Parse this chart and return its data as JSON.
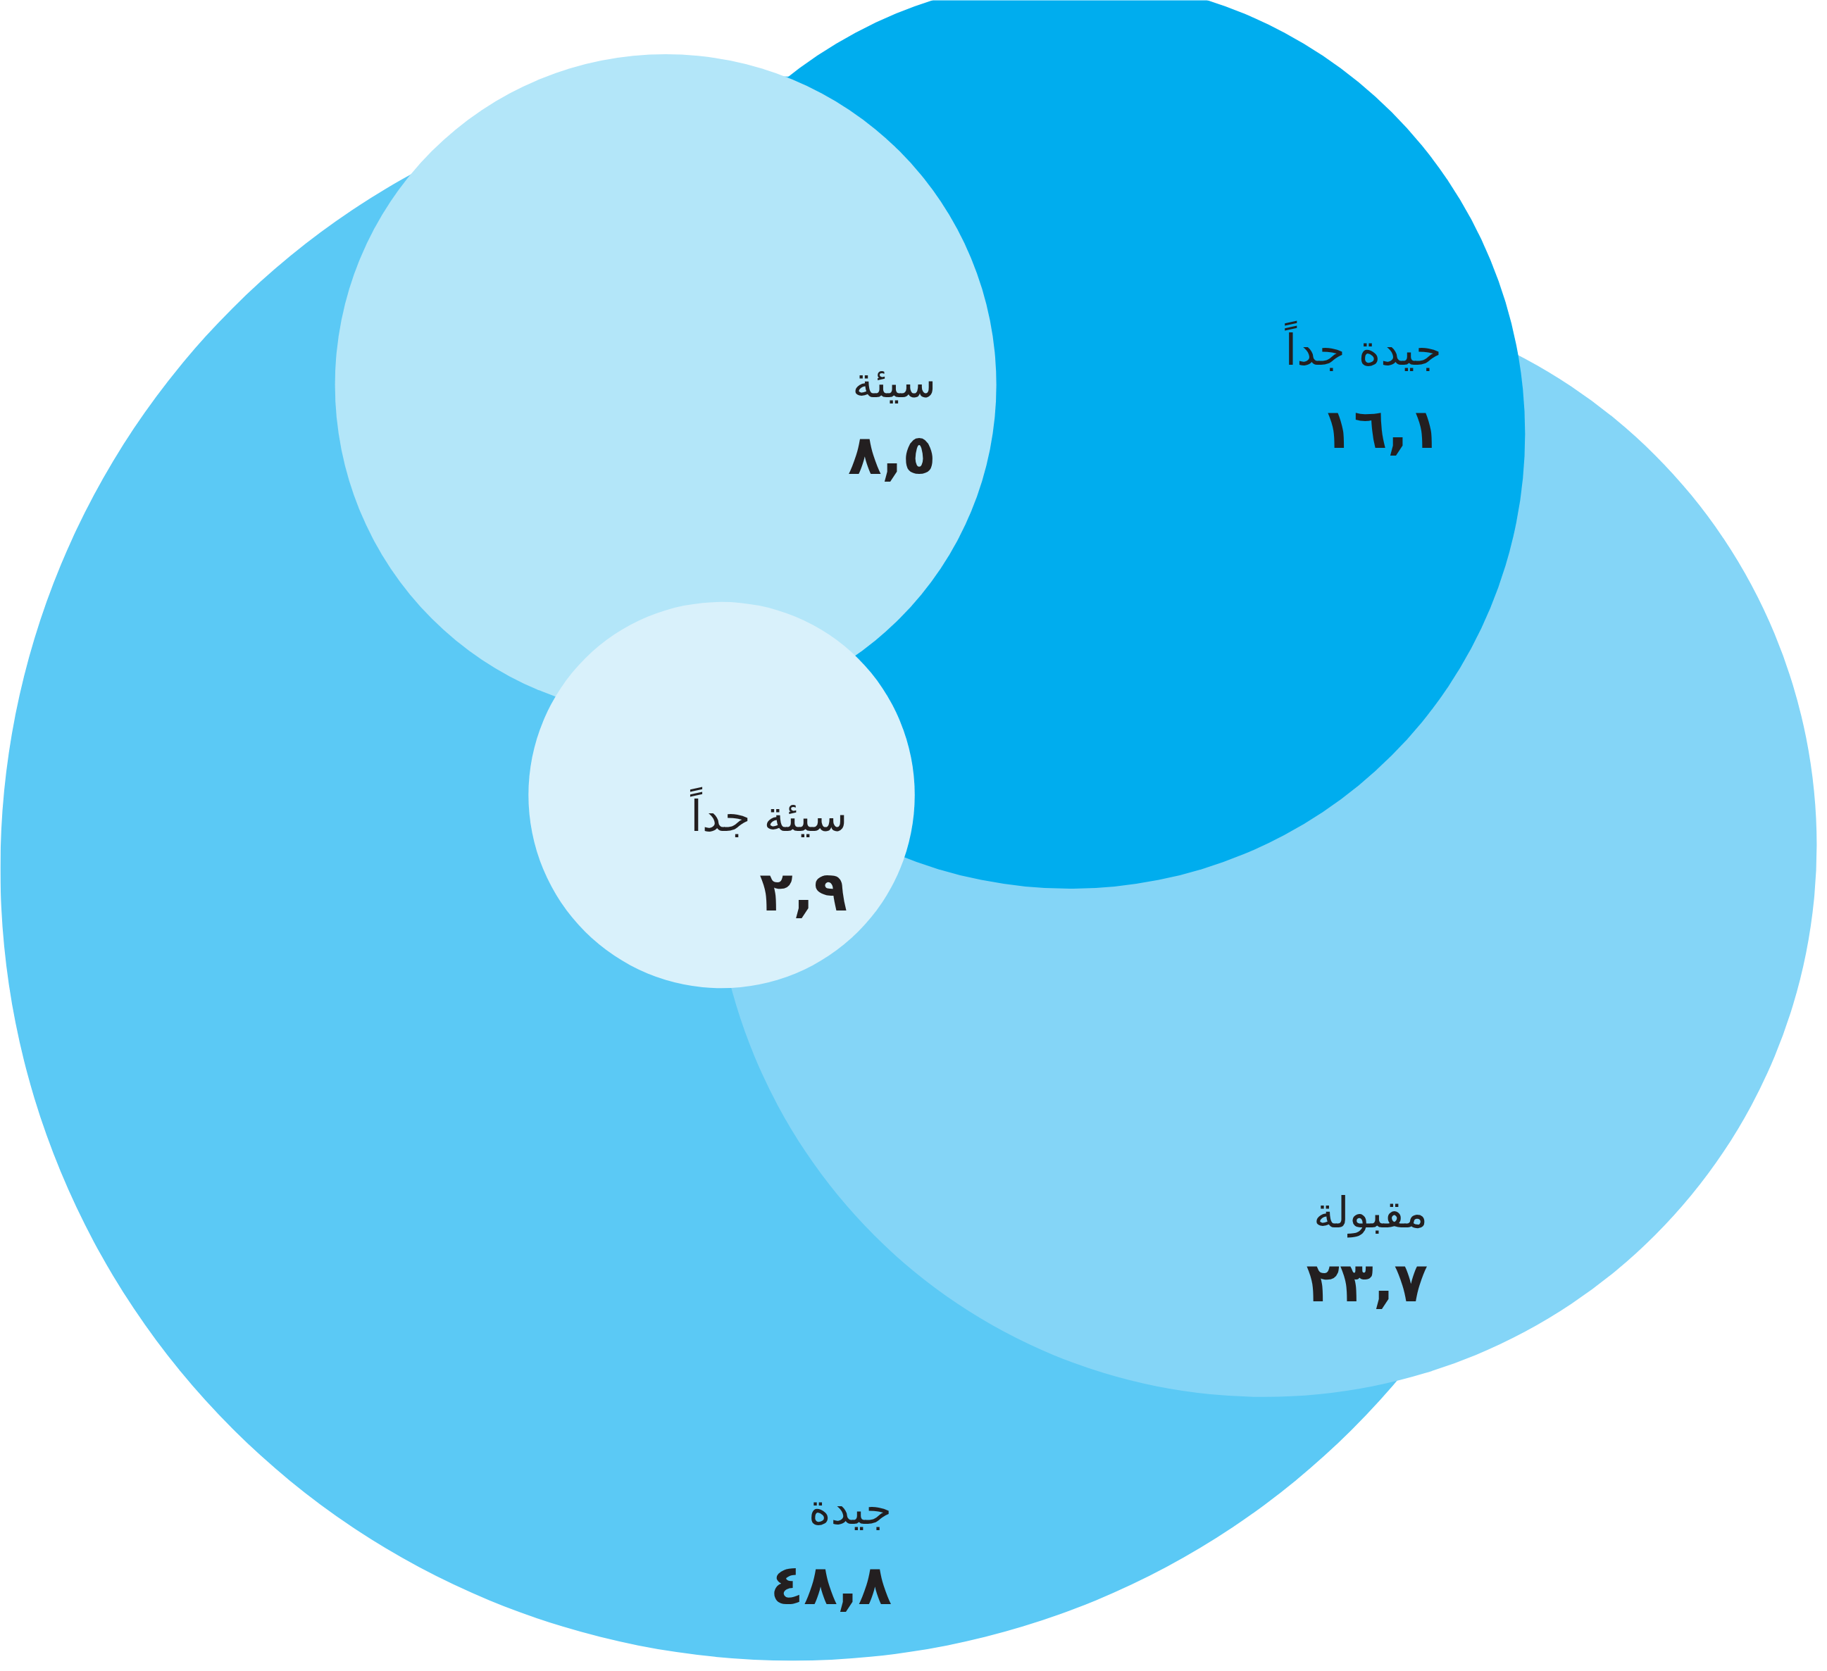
{
  "chart_data": {
    "type": "other",
    "categories": [
      "جيدة",
      "مقبولة",
      "جيدة جداً",
      "سيئة",
      "سيئة جداً"
    ],
    "values": [
      48.8,
      23.7,
      16.1,
      8.5,
      2.9
    ],
    "colors": [
      "#5bc9f5",
      "#84d5f7",
      "#00adee",
      "#b3e6f9",
      "#d9f1fb"
    ],
    "value_labels": [
      "٤٨,٨",
      "٢٣,٧",
      "١٦,١",
      "٨,٥",
      "٢,٩"
    ]
  }
}
